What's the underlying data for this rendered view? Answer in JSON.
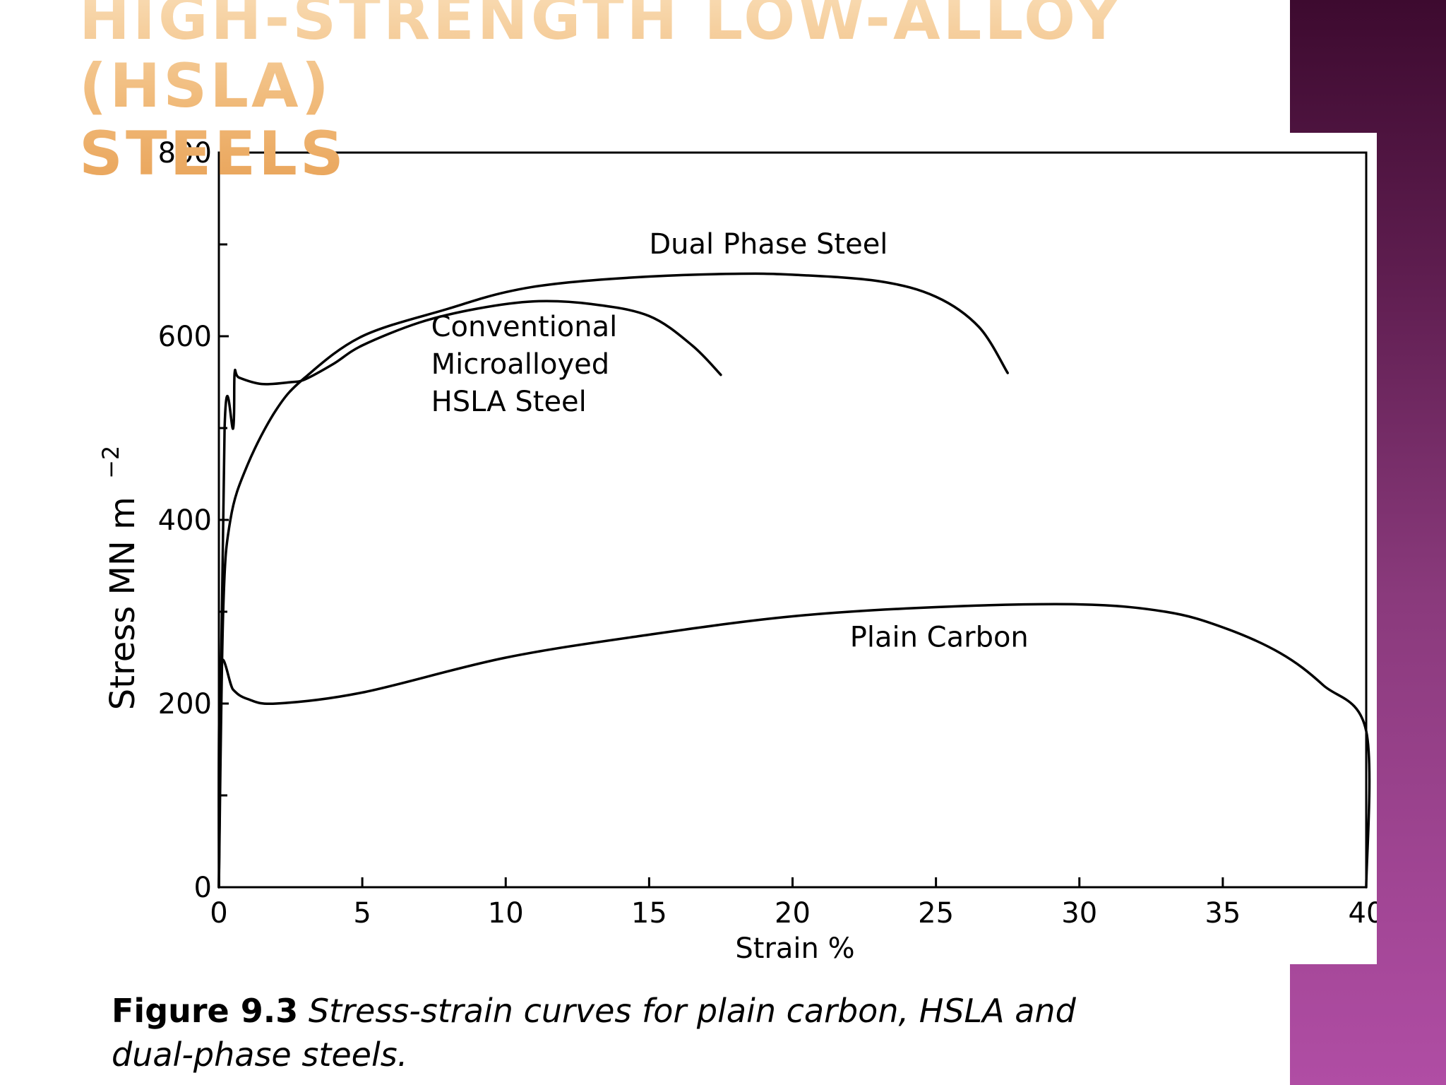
{
  "slide": {
    "title_line1": "High-Strength Low-Alloy (HSLA)",
    "title_line2": "Steels",
    "colors": {
      "title": "#f0b978",
      "band_top": "#3d0a2f",
      "band_bottom": "#b04da4",
      "ink": "#000000"
    }
  },
  "caption": {
    "figure_number": "Figure 9.3",
    "text": "Stress-strain curves for plain carbon, HSLA and dual-phase steels."
  },
  "chart_data": {
    "type": "line",
    "title": "",
    "xlabel": "Strain %",
    "ylabel": "Stress MN m",
    "ylabel_exponent": "−2",
    "xlim": [
      0,
      40
    ],
    "ylim": [
      0,
      800
    ],
    "xticks": [
      0,
      5,
      10,
      15,
      20,
      25,
      30,
      35,
      40
    ],
    "yticks": [
      0,
      200,
      400,
      600,
      800
    ],
    "grid": false,
    "legend": "none",
    "series": [
      {
        "name": "Dual Phase Steel",
        "label_lines": [
          "Dual Phase Steel"
        ],
        "label_at": [
          15,
          690
        ],
        "points": [
          [
            0,
            0
          ],
          [
            0.15,
            300
          ],
          [
            0.4,
            400
          ],
          [
            1,
            460
          ],
          [
            2,
            520
          ],
          [
            3,
            555
          ],
          [
            5,
            600
          ],
          [
            8,
            630
          ],
          [
            10,
            648
          ],
          [
            12,
            658
          ],
          [
            15,
            665
          ],
          [
            18,
            668
          ],
          [
            20,
            667
          ],
          [
            23,
            660
          ],
          [
            25,
            643
          ],
          [
            26.5,
            610
          ],
          [
            27.5,
            560
          ]
        ]
      },
      {
        "name": "Conventional Microalloyed HSLA Steel",
        "label_lines": [
          "Conventional",
          "Microalloyed",
          "HSLA Steel"
        ],
        "label_at": [
          7.4,
          600
        ],
        "points": [
          [
            0,
            0
          ],
          [
            0.2,
            500
          ],
          [
            0.5,
            500
          ],
          [
            0.55,
            560
          ],
          [
            0.7,
            555
          ],
          [
            1.5,
            548
          ],
          [
            2.5,
            550
          ],
          [
            3,
            553
          ],
          [
            4,
            570
          ],
          [
            5,
            590
          ],
          [
            7,
            615
          ],
          [
            9,
            630
          ],
          [
            11,
            638
          ],
          [
            13,
            635
          ],
          [
            15,
            622
          ],
          [
            16.5,
            590
          ],
          [
            17.5,
            558
          ]
        ]
      },
      {
        "name": "Plain Carbon",
        "label_lines": [
          "Plain Carbon"
        ],
        "label_at": [
          22,
          262
        ],
        "points": [
          [
            0,
            0
          ],
          [
            0.05,
            235
          ],
          [
            0.5,
            215
          ],
          [
            1,
            205
          ],
          [
            2,
            200
          ],
          [
            5,
            212
          ],
          [
            10,
            250
          ],
          [
            15,
            275
          ],
          [
            20,
            295
          ],
          [
            25,
            305
          ],
          [
            30,
            308
          ],
          [
            33,
            300
          ],
          [
            35,
            283
          ],
          [
            37,
            255
          ],
          [
            38.5,
            220
          ],
          [
            40,
            170
          ],
          [
            40,
            0
          ]
        ]
      }
    ]
  }
}
